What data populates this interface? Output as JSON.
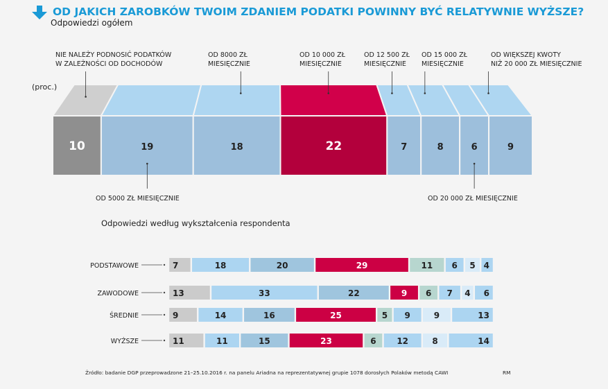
{
  "chart_data": [
    {
      "type": "bar",
      "title": "OD JAKICH ZAROBKÓW TWOIM ZDANIEM PODATKI POWINNY BYĆ RELATYWNIE WYŻSZE?",
      "subtitle": "Odpowiedzi ogółem",
      "unit": "(proc.)",
      "orientation": "stacked-horizontal",
      "categories": [
        [
          "NIE NALEŻY PODNOSIĆ PODATKÓW",
          "W ZALEŻNOŚCI OD DOCHODÓW"
        ],
        [
          "OD 5000 ZŁ MIESIĘCZNIE"
        ],
        [
          "OD 8000 ZŁ",
          "MIESIĘCZNIE"
        ],
        [
          "OD 10 000 ZŁ",
          "MIESIĘCZNIE"
        ],
        [
          "OD 12 500 ZŁ",
          "MIESIĘCZNIE"
        ],
        [
          "OD 15 000 ZŁ",
          "MIESIĘCZNIE"
        ],
        [
          "OD 20 000 ZŁ MIESIĘCZNIE"
        ],
        [
          "OD WIĘKSZEJ KWOTY",
          "NIŻ 20 000 ZŁ MIESIĘCZNIE"
        ]
      ],
      "values": [
        10,
        19,
        18,
        22,
        7,
        8,
        6,
        9
      ],
      "colors": {
        "front": [
          "#8f8f8f",
          "#9dbfdc",
          "#9dbfdc",
          "#b3003c",
          "#9dbfdc",
          "#9dbfdc",
          "#9dbfdc",
          "#9dbfdc"
        ],
        "top": [
          "#cfcfcf",
          "#aed6f1",
          "#aed6f1",
          "#d1004a",
          "#aed6f1",
          "#aed6f1",
          "#aed6f1",
          "#aed6f1"
        ]
      }
    },
    {
      "type": "bar",
      "title": "Odpowiedzi według wykształcenia respondenta",
      "orientation": "stacked-horizontal",
      "rows": [
        "PODSTAWOWE",
        "ZAWODOWE",
        "ŚREDNIE",
        "WYŻSZE"
      ],
      "series_values": [
        [
          7,
          18,
          20,
          29,
          11,
          6,
          5,
          4
        ],
        [
          13,
          33,
          22,
          9,
          6,
          7,
          4,
          6
        ],
        [
          9,
          14,
          16,
          25,
          5,
          9,
          9,
          13
        ],
        [
          11,
          11,
          15,
          23,
          6,
          12,
          8,
          14
        ]
      ],
      "colors": [
        "#cbcbcb",
        "#acd5f1",
        "#9fc5de",
        "#cc0044",
        "#b7d6cf",
        "#acd5f1",
        "#d9ebf8",
        "#acd5f1"
      ]
    }
  ],
  "footer": {
    "source": "Źródło: badanie DGP przeprowadzone 21–25.10.2016 r. na panelu Ariadna na reprezentatywnej grupie 1078 dorosłych Polaków metodą CAWI",
    "author": "RM"
  },
  "accent": "#1a9ad6"
}
